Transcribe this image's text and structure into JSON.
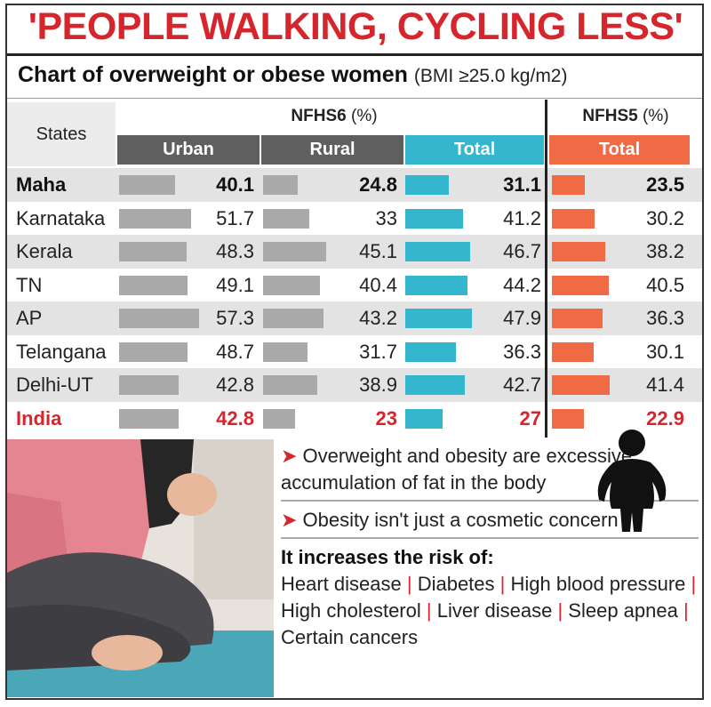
{
  "headline": "'PEOPLE WALKING, CYCLING LESS'",
  "subtitle": "Chart of overweight or obese women",
  "subtitle_unit": "(BMI ≥25.0 kg/m2)",
  "chart_data": {
    "type": "table",
    "states_header": "States",
    "groups": [
      {
        "name": "NFHS6",
        "unit": "(%)",
        "columns": [
          "Urban",
          "Rural",
          "Total"
        ]
      },
      {
        "name": "NFHS5",
        "unit": "(%)",
        "columns": [
          "Total"
        ]
      }
    ],
    "column_colors": {
      "Urban": "#5f5f5f",
      "Rural": "#5f5f5f",
      "Total_NFHS6": "#35b6cf",
      "Total_NFHS5": "#ef6a45"
    },
    "bar_colors": {
      "urban": "#a9a9a9",
      "rural": "#a9a9a9",
      "total6": "#35b6cf",
      "total5": "#ef6a45"
    },
    "rows": [
      {
        "state": "Maha",
        "urban": "40.1",
        "rural": "24.8",
        "total6": "31.1",
        "total5": "23.5"
      },
      {
        "state": "Karnataka",
        "urban": "51.7",
        "rural": "33",
        "total6": "41.2",
        "total5": "30.2"
      },
      {
        "state": "Kerala",
        "urban": "48.3",
        "rural": "45.1",
        "total6": "46.7",
        "total5": "38.2"
      },
      {
        "state": "TN",
        "urban": "49.1",
        "rural": "40.4",
        "total6": "44.2",
        "total5": "40.5"
      },
      {
        "state": "AP",
        "urban": "57.3",
        "rural": "43.2",
        "total6": "47.9",
        "total5": "36.3"
      },
      {
        "state": "Telangana",
        "urban": "48.7",
        "rural": "31.7",
        "total6": "36.3",
        "total5": "30.1"
      },
      {
        "state": "Delhi-UT",
        "urban": "42.8",
        "rural": "38.9",
        "total6": "42.7",
        "total5": "41.4"
      },
      {
        "state": "India",
        "urban": "42.8",
        "rural": "23",
        "total6": "27",
        "total5": "22.9"
      }
    ]
  },
  "notes": {
    "note1": "Overweight and obesity are excessive accumulation of fat in the body",
    "note2": "Obesity isn't just a cosmetic concern",
    "risk_title": "It increases the risk of:",
    "risks": [
      "Heart disease",
      "Diabetes",
      "High blood pressure",
      "High cholesterol",
      "Liver disease",
      "Sleep apnea",
      "Certain cancers"
    ]
  },
  "colors": {
    "headline": "#d6262d",
    "india_row": "#d6262d",
    "arrow": "#d6262d"
  }
}
